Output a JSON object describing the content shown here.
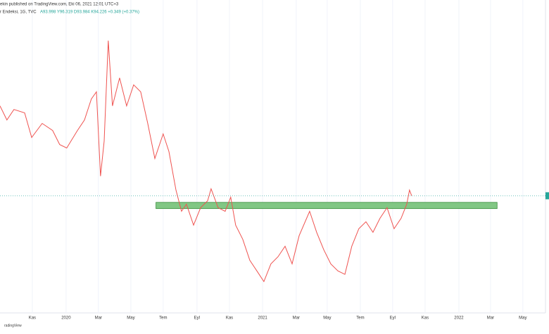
{
  "chart_data": {
    "type": "line",
    "header": "ekin published on TradingView.com, Eki 06, 2021 12:01 UTC+3",
    "symbol": "r Endeksi, 1G, TVC",
    "ohlc": "A93.998 Y96.319 D93.984 K94.226 +0.349 (+0.37%)",
    "brand": "radingView",
    "x": [
      -0.21,
      0.21,
      0.64,
      1.29,
      1.72,
      2.36,
      3.0,
      3.43,
      3.86,
      4.51,
      4.94,
      5.36,
      5.67,
      5.92,
      6.14,
      6.39,
      6.65,
      7.08,
      7.51,
      7.94,
      8.37,
      8.8,
      9.23,
      9.74,
      10.09,
      10.52,
      10.86,
      11.16,
      11.59,
      12.02,
      12.45,
      12.66,
      13.09,
      13.52,
      13.86,
      14.16,
      14.59,
      15.02,
      15.45,
      15.88,
      16.31,
      16.74,
      17.17,
      17.6,
      18.03,
      18.67,
      19.1,
      19.53,
      19.96,
      20.39,
      20.82,
      21.24,
      21.67,
      22.1,
      22.53,
      22.96,
      23.39,
      23.82,
      24.25,
      24.59,
      24.76,
      24.89
    ],
    "series": [
      {
        "color": "#ef5350",
        "values": [
          99.26,
          98.47,
          99.06,
          98.87,
          97.49,
          98.28,
          97.88,
          97.09,
          96.9,
          97.88,
          98.47,
          99.65,
          100.05,
          95.32,
          97.29,
          102.92,
          99.26,
          100.83,
          99.26,
          100.44,
          100.05,
          98.28,
          96.31,
          97.69,
          96.7,
          94.54,
          93.35,
          93.75,
          92.57,
          93.55,
          93.94,
          94.61,
          93.55,
          93.35,
          94.14,
          92.57,
          91.78,
          90.6,
          90.01,
          89.41,
          90.4,
          90.8,
          91.39,
          90.4,
          91.98,
          93.35,
          92.17,
          91.19,
          90.4,
          90.01,
          89.81,
          91.39,
          92.37,
          92.76,
          92.17,
          92.96,
          93.55,
          92.37,
          92.96,
          93.75,
          94.54,
          94.22
        ]
      }
    ],
    "zone": {
      "x": [
        9.3,
        30.1
      ],
      "y": [
        93.5,
        93.85
      ],
      "color": "#81c784"
    },
    "xlim": [
      -0.21,
      33.05
    ],
    "ylim": [
      87.65,
      105.2
    ],
    "xticks": [
      {
        "value": 1.76,
        "label": "Kas"
      },
      {
        "value": 3.82,
        "label": "2020"
      },
      {
        "value": 5.79,
        "label": "Mar"
      },
      {
        "value": 7.77,
        "label": "May"
      },
      {
        "value": 9.74,
        "label": "Tem"
      },
      {
        "value": 11.8,
        "label": "Eyl"
      },
      {
        "value": 13.78,
        "label": "Kas"
      },
      {
        "value": 15.8,
        "label": "2021"
      },
      {
        "value": 17.85,
        "label": "Mar"
      },
      {
        "value": 19.74,
        "label": "May"
      },
      {
        "value": 21.76,
        "label": "Tem"
      },
      {
        "value": 23.73,
        "label": "Eyl"
      },
      {
        "value": 25.71,
        "label": "Kas"
      },
      {
        "value": 27.77,
        "label": "2022"
      },
      {
        "value": 29.7,
        "label": "Mar"
      },
      {
        "value": 31.67,
        "label": "May"
      }
    ],
    "grid": true
  }
}
